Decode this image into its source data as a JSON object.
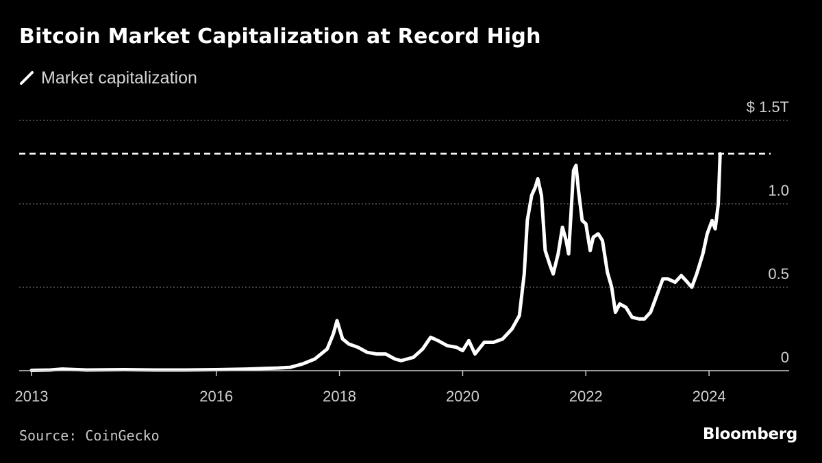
{
  "header": {
    "title": "Bitcoin Market Capitalization at Record High"
  },
  "legend": {
    "label": "Market capitalization"
  },
  "footer": {
    "source": "Source: CoinGecko",
    "brand": "Bloomberg"
  },
  "colors": {
    "background": "#000000",
    "line": "#ffffff",
    "grid": "#6e6e6e",
    "text": "#d0d0d0"
  },
  "chart_data": {
    "type": "line",
    "title": "Bitcoin Market Capitalization at Record High",
    "series": [
      {
        "name": "Market capitalization",
        "x": [
          2013.0,
          2013.3,
          2013.5,
          2013.9,
          2014.5,
          2015.0,
          2015.5,
          2016.0,
          2016.5,
          2017.0,
          2017.2,
          2017.4,
          2017.6,
          2017.8,
          2017.9,
          2017.96,
          2018.05,
          2018.15,
          2018.3,
          2018.45,
          2018.6,
          2018.75,
          2018.9,
          2019.0,
          2019.2,
          2019.35,
          2019.48,
          2019.6,
          2019.75,
          2019.9,
          2020.0,
          2020.1,
          2020.2,
          2020.35,
          2020.5,
          2020.65,
          2020.8,
          2020.92,
          2021.0,
          2021.05,
          2021.12,
          2021.18,
          2021.22,
          2021.28,
          2021.34,
          2021.42,
          2021.47,
          2021.55,
          2021.62,
          2021.68,
          2021.72,
          2021.76,
          2021.8,
          2021.84,
          2021.88,
          2021.94,
          2022.0,
          2022.07,
          2022.12,
          2022.2,
          2022.27,
          2022.35,
          2022.42,
          2022.48,
          2022.55,
          2022.65,
          2022.75,
          2022.87,
          2022.95,
          2023.05,
          2023.15,
          2023.25,
          2023.33,
          2023.45,
          2023.55,
          2023.65,
          2023.72,
          2023.8,
          2023.9,
          2023.97,
          2024.05,
          2024.1,
          2024.15,
          2024.18
        ],
        "values": [
          0.002,
          0.004,
          0.01,
          0.004,
          0.006,
          0.004,
          0.004,
          0.006,
          0.01,
          0.016,
          0.02,
          0.04,
          0.07,
          0.13,
          0.22,
          0.3,
          0.19,
          0.16,
          0.14,
          0.11,
          0.1,
          0.1,
          0.07,
          0.06,
          0.08,
          0.13,
          0.2,
          0.18,
          0.15,
          0.14,
          0.12,
          0.18,
          0.1,
          0.17,
          0.17,
          0.19,
          0.25,
          0.33,
          0.58,
          0.9,
          1.05,
          1.1,
          1.15,
          1.05,
          0.72,
          0.63,
          0.58,
          0.7,
          0.86,
          0.78,
          0.7,
          0.95,
          1.2,
          1.23,
          1.08,
          0.9,
          0.88,
          0.72,
          0.8,
          0.82,
          0.78,
          0.59,
          0.5,
          0.35,
          0.4,
          0.38,
          0.32,
          0.31,
          0.31,
          0.35,
          0.45,
          0.55,
          0.55,
          0.53,
          0.57,
          0.53,
          0.5,
          0.58,
          0.7,
          0.82,
          0.9,
          0.85,
          1.0,
          1.3
        ]
      }
    ],
    "reference_line": {
      "value": 1.3,
      "style": "dashed"
    },
    "xlim": [
      2012.8,
      2025.3
    ],
    "ylim": [
      0,
      1.5
    ],
    "xticks": [
      2013,
      2016,
      2018,
      2020,
      2022,
      2024
    ],
    "xtick_labels": [
      "2013",
      "2016",
      "2018",
      "2020",
      "2022",
      "2024"
    ],
    "yticks": [
      0,
      0.5,
      1.0,
      1.5
    ],
    "ytick_labels": [
      "0",
      "0.5",
      "1.0",
      "$ 1.5T"
    ],
    "grid": "horizontal dotted",
    "legend_position": "top-left"
  }
}
